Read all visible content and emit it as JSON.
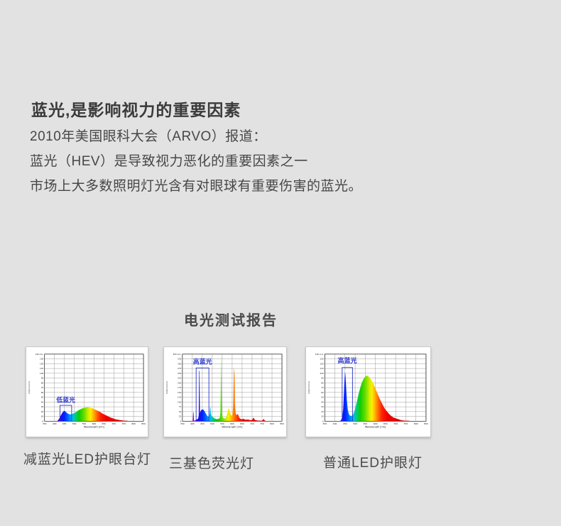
{
  "page": {
    "title": "蓝光,是影响视力的重要因素",
    "paragraph_lines": [
      "2010年美国眼科大会（ARVO）报道：",
      "蓝光（HEV）是导致视力恶化的重要因素之一",
      "市场上大多数照明灯光含有对眼球有重要伤害的蓝光。"
    ],
    "section_heading": "电光测试报告"
  },
  "colors": {
    "background": "#e2e2e2",
    "annotation_blue": "#2a35cc",
    "title_text": "#3a3a3a",
    "body_text": "#474747",
    "grid_line": "#5c5c5c",
    "plot_border": "#1a1a1a"
  },
  "spectral_gradient": [
    {
      "wl": 350,
      "color": "#9900dd"
    },
    {
      "wl": 400,
      "color": "#8800dd"
    },
    {
      "wl": 425,
      "color": "#3300ee"
    },
    {
      "wl": 450,
      "color": "#0022ff"
    },
    {
      "wl": 468,
      "color": "#0066ff"
    },
    {
      "wl": 488,
      "color": "#00bbff"
    },
    {
      "wl": 505,
      "color": "#00cc88"
    },
    {
      "wl": 525,
      "color": "#11cc00"
    },
    {
      "wl": 550,
      "color": "#66dd00"
    },
    {
      "wl": 570,
      "color": "#ccee00"
    },
    {
      "wl": 583,
      "color": "#ffee00"
    },
    {
      "wl": 600,
      "color": "#ffaa00"
    },
    {
      "wl": 615,
      "color": "#ff6600"
    },
    {
      "wl": 632,
      "color": "#ff2200"
    },
    {
      "wl": 660,
      "color": "#ee0000"
    },
    {
      "wl": 850,
      "color": "#cc0000"
    }
  ],
  "chart_data": [
    {
      "type": "area",
      "caption": "减蓝光LED护眼台灯",
      "corner_label": "140 A.U.",
      "xlabel": "Wavelength [nm]",
      "ylabel": "[mW/m2/nm]",
      "xlim": [
        350,
        850
      ],
      "ylim": [
        0,
        140
      ],
      "x_tick_step": 50,
      "y_tick_step": 10,
      "annotation": {
        "label": "低蓝光",
        "box_wl": [
          428,
          487
        ],
        "box_v": [
          0,
          33
        ],
        "label_v": 40
      },
      "points": [
        [
          413,
          0
        ],
        [
          420,
          3
        ],
        [
          428,
          8
        ],
        [
          436,
          15
        ],
        [
          444,
          20
        ],
        [
          450,
          22
        ],
        [
          456,
          20
        ],
        [
          464,
          17
        ],
        [
          472,
          15
        ],
        [
          480,
          14
        ],
        [
          488,
          15
        ],
        [
          496,
          16
        ],
        [
          504,
          18
        ],
        [
          512,
          20
        ],
        [
          522,
          23
        ],
        [
          532,
          25
        ],
        [
          542,
          27
        ],
        [
          552,
          28
        ],
        [
          562,
          29
        ],
        [
          572,
          29
        ],
        [
          582,
          28
        ],
        [
          592,
          27
        ],
        [
          602,
          25
        ],
        [
          612,
          23
        ],
        [
          622,
          21
        ],
        [
          632,
          19
        ],
        [
          642,
          16
        ],
        [
          652,
          14
        ],
        [
          662,
          12
        ],
        [
          672,
          10
        ],
        [
          682,
          8
        ],
        [
          695,
          6
        ],
        [
          708,
          4
        ],
        [
          722,
          3
        ],
        [
          736,
          2
        ],
        [
          750,
          1
        ],
        [
          765,
          1
        ],
        [
          780,
          0
        ]
      ]
    },
    {
      "type": "area",
      "caption": "三基色荧光灯",
      "corner_label": "350 A.U.",
      "xlabel": "Wavelength [nm]",
      "ylabel": "[mW/m2/nm]",
      "xlim": [
        350,
        850
      ],
      "ylim": [
        0,
        350
      ],
      "x_tick_step": 50,
      "y_tick_step": 25,
      "annotation": {
        "label": "高蓝光",
        "box_wl": [
          419,
          483
        ],
        "box_v": [
          0,
          278
        ],
        "label_v": 300
      },
      "points": [
        [
          399,
          0
        ],
        [
          402,
          1
        ],
        [
          404,
          46
        ],
        [
          406,
          46
        ],
        [
          408,
          2
        ],
        [
          412,
          3
        ],
        [
          418,
          6
        ],
        [
          424,
          10
        ],
        [
          429,
          14
        ],
        [
          432,
          30
        ],
        [
          434,
          263
        ],
        [
          436,
          263
        ],
        [
          438,
          40
        ],
        [
          441,
          52
        ],
        [
          445,
          58
        ],
        [
          449,
          60
        ],
        [
          453,
          62
        ],
        [
          457,
          58
        ],
        [
          461,
          52
        ],
        [
          465,
          45
        ],
        [
          469,
          38
        ],
        [
          473,
          30
        ],
        [
          477,
          26
        ],
        [
          481,
          24
        ],
        [
          484,
          28
        ],
        [
          487,
          40
        ],
        [
          489,
          73
        ],
        [
          491,
          73
        ],
        [
          493,
          40
        ],
        [
          496,
          28
        ],
        [
          500,
          24
        ],
        [
          505,
          20
        ],
        [
          510,
          16
        ],
        [
          515,
          13
        ],
        [
          520,
          11
        ],
        [
          526,
          11
        ],
        [
          532,
          13
        ],
        [
          538,
          18
        ],
        [
          541,
          45
        ],
        [
          543,
          170
        ],
        [
          545,
          345
        ],
        [
          547,
          170
        ],
        [
          549,
          45
        ],
        [
          552,
          22
        ],
        [
          556,
          16
        ],
        [
          560,
          14
        ],
        [
          564,
          15
        ],
        [
          568,
          18
        ],
        [
          572,
          25
        ],
        [
          576,
          45
        ],
        [
          580,
          62
        ],
        [
          583,
          68
        ],
        [
          586,
          62
        ],
        [
          590,
          45
        ],
        [
          594,
          30
        ],
        [
          598,
          28
        ],
        [
          602,
          38
        ],
        [
          605,
          90
        ],
        [
          608,
          240
        ],
        [
          610,
          283
        ],
        [
          612,
          240
        ],
        [
          614,
          90
        ],
        [
          617,
          45
        ],
        [
          620,
          32
        ],
        [
          624,
          33
        ],
        [
          627,
          38
        ],
        [
          630,
          34
        ],
        [
          634,
          22
        ],
        [
          638,
          15
        ],
        [
          642,
          12
        ],
        [
          647,
          10
        ],
        [
          652,
          11
        ],
        [
          656,
          13
        ],
        [
          659,
          11
        ],
        [
          663,
          9
        ],
        [
          668,
          8
        ],
        [
          673,
          8
        ],
        [
          678,
          9
        ],
        [
          683,
          8
        ],
        [
          688,
          6
        ],
        [
          694,
          5
        ],
        [
          700,
          7
        ],
        [
          704,
          14
        ],
        [
          707,
          19
        ],
        [
          710,
          14
        ],
        [
          714,
          7
        ],
        [
          719,
          5
        ],
        [
          725,
          4
        ],
        [
          732,
          3
        ],
        [
          740,
          3
        ],
        [
          748,
          2
        ],
        [
          754,
          6
        ],
        [
          758,
          13
        ],
        [
          761,
          6
        ],
        [
          766,
          2
        ],
        [
          772,
          1
        ],
        [
          778,
          0
        ]
      ]
    },
    {
      "type": "area",
      "caption": "普通LED护眼灯",
      "corner_label": "140 A.U.",
      "xlabel": "Wavelength [nm]",
      "ylabel": "[mW/m2/nm]",
      "xlim": [
        350,
        850
      ],
      "ylim": [
        0,
        140
      ],
      "x_tick_step": 50,
      "y_tick_step": 10,
      "annotation": {
        "label": "高蓝光",
        "box_wl": [
          436,
          487
        ],
        "box_v": [
          0,
          112
        ],
        "label_v": 122
      },
      "points": [
        [
          424,
          0
        ],
        [
          430,
          2
        ],
        [
          436,
          8
        ],
        [
          441,
          25
        ],
        [
          445,
          60
        ],
        [
          448,
          90
        ],
        [
          450,
          103
        ],
        [
          452,
          98
        ],
        [
          455,
          75
        ],
        [
          459,
          45
        ],
        [
          463,
          26
        ],
        [
          468,
          16
        ],
        [
          473,
          12
        ],
        [
          478,
          11
        ],
        [
          483,
          11
        ],
        [
          488,
          13
        ],
        [
          494,
          18
        ],
        [
          500,
          26
        ],
        [
          508,
          40
        ],
        [
          516,
          55
        ],
        [
          524,
          68
        ],
        [
          532,
          79
        ],
        [
          540,
          87
        ],
        [
          548,
          92
        ],
        [
          556,
          95
        ],
        [
          564,
          94
        ],
        [
          572,
          91
        ],
        [
          580,
          86
        ],
        [
          588,
          80
        ],
        [
          596,
          72
        ],
        [
          604,
          64
        ],
        [
          612,
          56
        ],
        [
          620,
          48
        ],
        [
          628,
          41
        ],
        [
          636,
          34
        ],
        [
          644,
          28
        ],
        [
          652,
          23
        ],
        [
          660,
          19
        ],
        [
          668,
          15
        ],
        [
          678,
          11
        ],
        [
          688,
          8
        ],
        [
          700,
          6
        ],
        [
          714,
          4
        ],
        [
          728,
          2
        ],
        [
          745,
          1
        ],
        [
          762,
          1
        ],
        [
          778,
          0
        ]
      ]
    }
  ]
}
